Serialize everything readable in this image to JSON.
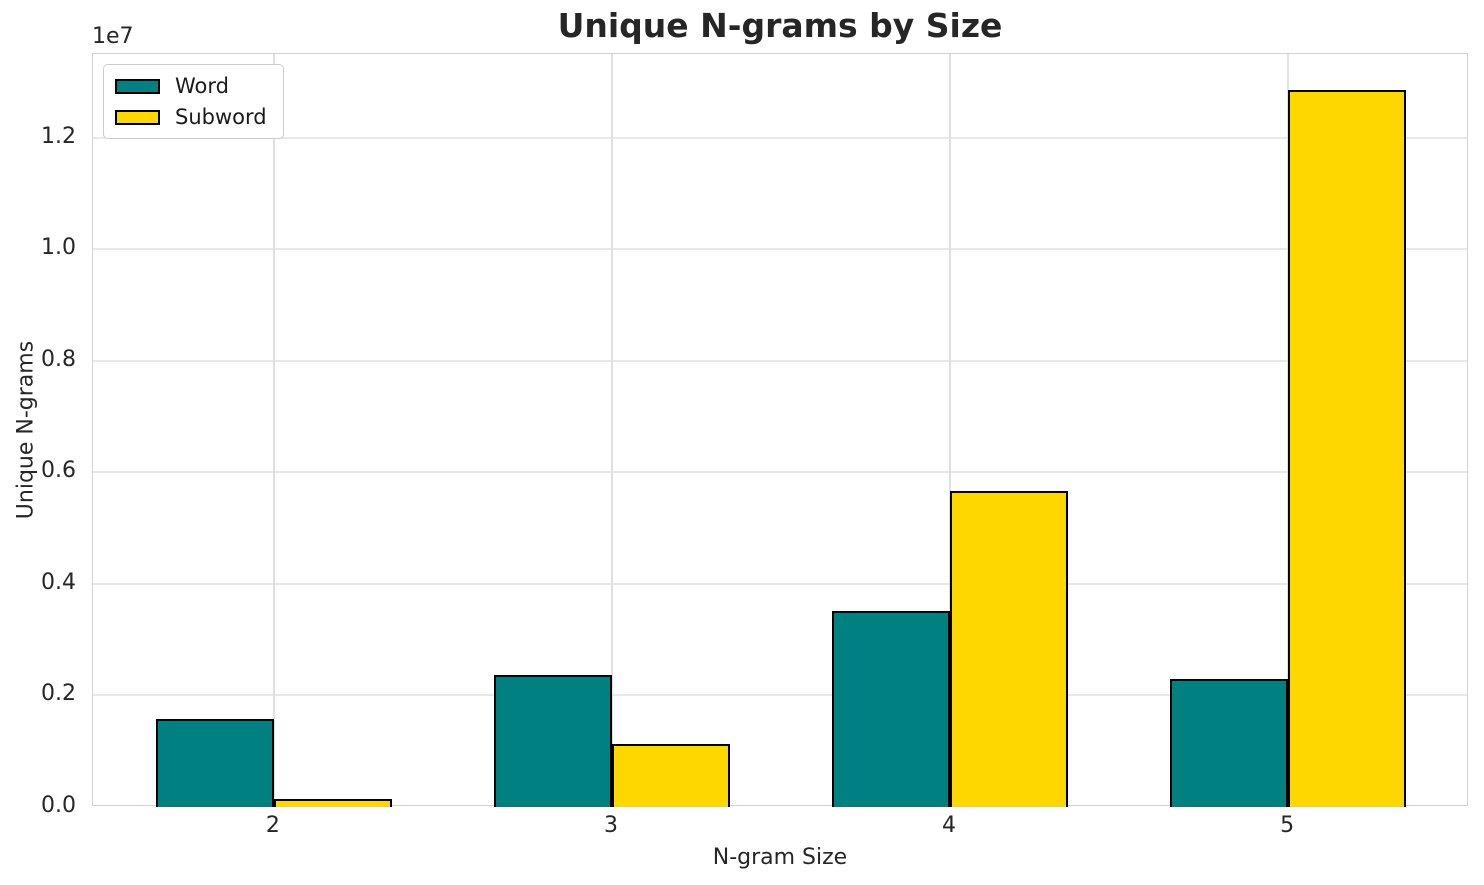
{
  "chart_data": {
    "type": "bar",
    "title": "Unique N-grams by Size",
    "xlabel": "N-gram Size",
    "ylabel": "Unique N-grams",
    "offset_text": "1e7",
    "categories": [
      "2",
      "3",
      "4",
      "5"
    ],
    "series": [
      {
        "name": "Word",
        "color": "#008080",
        "values": [
          1580000,
          2370000,
          3520000,
          2300000
        ]
      },
      {
        "name": "Subword",
        "color": "#FFD700",
        "values": [
          140000,
          1130000,
          5670000,
          12850000
        ]
      }
    ],
    "ylim": [
      0,
      13500000
    ],
    "yticks": [
      0,
      2000000,
      4000000,
      6000000,
      8000000,
      10000000,
      12000000
    ],
    "ytick_labels": [
      "0.0",
      "0.2",
      "0.4",
      "0.6",
      "0.8",
      "1.0",
      "1.2"
    ],
    "grid": true,
    "legend_position": "upper left",
    "bar_edge_color": "#000000",
    "background_color": "#ffffff"
  }
}
